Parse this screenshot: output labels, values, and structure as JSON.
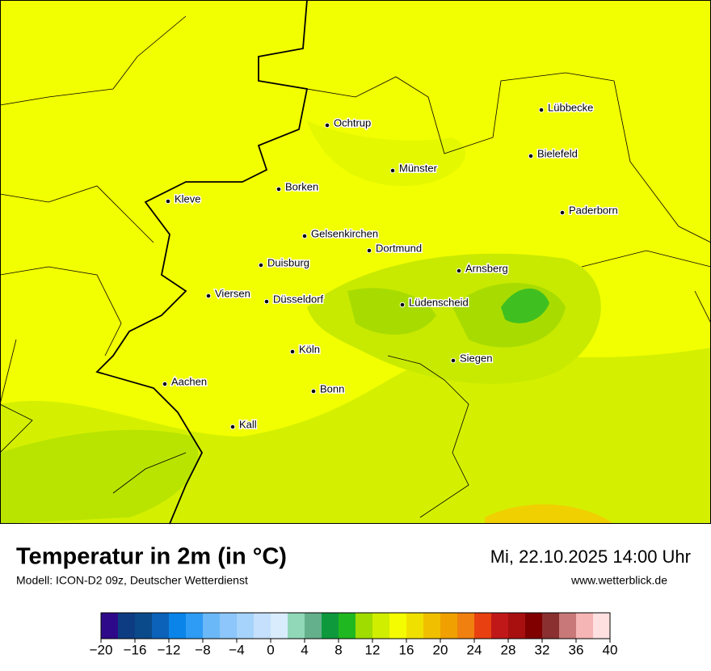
{
  "title": "Temperatur in 2m (in °C)",
  "model": "Modell: ICON-D2 09z, Deutscher Wetterdienst",
  "datetime": "Mi, 22.10.2025 14:00 Uhr",
  "website": "www.wetterblick.de",
  "cities": [
    "Lübbecke",
    "Ochtrup",
    "Bielefeld",
    "Münster",
    "Borken",
    "Kleve",
    "Paderborn",
    "Gelsenkirchen",
    "Dortmund",
    "Duisburg",
    "Arnsberg",
    "Viersen",
    "Düsseldorf",
    "Lüdenscheid",
    "Köln",
    "Siegen",
    "Aachen",
    "Bonn",
    "Kall"
  ],
  "colorbar": {
    "lim": [
      -20,
      40
    ],
    "colors": [
      "#2e0a8a",
      "#0d3c82",
      "#0a4a8a",
      "#0b62b8",
      "#0a84e8",
      "#2e9bf5",
      "#6ab8f8",
      "#8cc6fa",
      "#a6d3fb",
      "#c4e0fc",
      "#d8ecfd",
      "#90d8b8",
      "#64b08c",
      "#0e9a3c",
      "#20b820",
      "#a0dc00",
      "#d0ee00",
      "#f5fb00",
      "#f0e000",
      "#f0c000",
      "#f0a000",
      "#f08010",
      "#e84010",
      "#c01818",
      "#a81010",
      "#800000",
      "#8a3030",
      "#c87878",
      "#f5b5b5",
      "#ffe0e0"
    ],
    "ticks": [
      {
        "value": -20,
        "label": "−20"
      },
      {
        "value": -16,
        "label": "−16"
      },
      {
        "value": -12,
        "label": "−12"
      },
      {
        "value": -8,
        "label": "−8"
      },
      {
        "value": -4,
        "label": "−4"
      },
      0,
      4,
      8,
      12,
      16,
      20,
      24,
      28,
      32,
      36,
      40
    ]
  }
}
